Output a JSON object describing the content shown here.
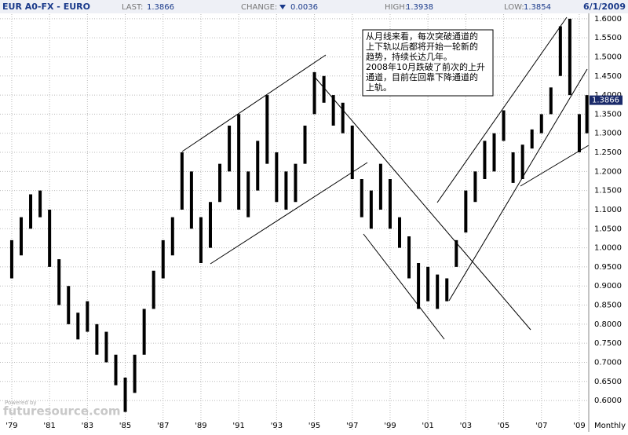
{
  "header": {
    "symbol": "EUR A0-FX - EURO",
    "last_label": "LAST:",
    "last": "1.3866",
    "change_label": "CHANGE:",
    "change": "0.0036",
    "high_label": "HIGH:",
    "high": "1.3938",
    "low_label": "LOW:",
    "low": "1.3854",
    "date": "6/1/2009"
  },
  "annotation": [
    "从月线来看，每次突破通道的",
    "上下轨以后都将开始一轮新的",
    "趋势，持续长达几年。",
    "2008年10月跌破了前次的上升",
    "通道，目前在回靠下降通道的",
    "上轨。"
  ],
  "watermark": {
    "small": "Powered by",
    "brand": "futuresource.com"
  },
  "chart_data": {
    "type": "range-bar",
    "color": "#000000",
    "grid": true,
    "x": [
      1979.0,
      1979.5,
      1980.0,
      1980.5,
      1981.0,
      1981.5,
      1982.0,
      1982.5,
      1983.0,
      1983.5,
      1984.0,
      1984.5,
      1985.0,
      1985.5,
      1986.0,
      1986.5,
      1987.0,
      1987.5,
      1988.0,
      1988.5,
      1989.0,
      1989.5,
      1990.0,
      1990.5,
      1991.0,
      1991.5,
      1992.0,
      1992.5,
      1993.0,
      1993.5,
      1994.0,
      1994.5,
      1995.0,
      1995.5,
      1996.0,
      1996.5,
      1997.0,
      1997.5,
      1998.0,
      1998.5,
      1999.0,
      1999.5,
      2000.0,
      2000.5,
      2001.0,
      2001.5,
      2002.0,
      2002.5,
      2003.0,
      2003.5,
      2004.0,
      2004.5,
      2005.0,
      2005.5,
      2006.0,
      2006.5,
      2007.0,
      2007.5,
      2008.0,
      2008.5,
      2009.0,
      2009.4
    ],
    "high": [
      1.02,
      1.08,
      1.14,
      1.15,
      1.1,
      0.97,
      0.9,
      0.83,
      0.86,
      0.8,
      0.78,
      0.72,
      0.66,
      0.72,
      0.84,
      0.94,
      1.02,
      1.08,
      1.25,
      1.2,
      1.08,
      1.12,
      1.22,
      1.32,
      1.35,
      1.2,
      1.28,
      1.4,
      1.25,
      1.2,
      1.22,
      1.32,
      1.46,
      1.45,
      1.4,
      1.38,
      1.32,
      1.18,
      1.15,
      1.22,
      1.18,
      1.08,
      1.03,
      0.96,
      0.95,
      0.93,
      0.92,
      1.02,
      1.15,
      1.2,
      1.28,
      1.3,
      1.36,
      1.25,
      1.27,
      1.31,
      1.35,
      1.42,
      1.58,
      1.6,
      1.35,
      1.4
    ],
    "low": [
      0.92,
      0.98,
      1.05,
      1.08,
      0.95,
      0.85,
      0.8,
      0.76,
      0.78,
      0.72,
      0.7,
      0.64,
      0.57,
      0.62,
      0.72,
      0.84,
      0.92,
      0.98,
      1.1,
      1.05,
      0.96,
      1.0,
      1.12,
      1.2,
      1.1,
      1.08,
      1.15,
      1.22,
      1.12,
      1.1,
      1.12,
      1.22,
      1.35,
      1.38,
      1.32,
      1.3,
      1.18,
      1.08,
      1.05,
      1.1,
      1.05,
      1.0,
      0.92,
      0.84,
      0.86,
      0.84,
      0.86,
      0.95,
      1.04,
      1.12,
      1.18,
      1.2,
      1.28,
      1.17,
      1.18,
      1.26,
      1.3,
      1.35,
      1.45,
      1.4,
      1.25,
      1.3
    ],
    "xlim": [
      1978.38,
      2009.5
    ],
    "xticks": [
      {
        "value": 1979,
        "label": "'79"
      },
      {
        "value": 1981,
        "label": "'81"
      },
      {
        "value": 1983,
        "label": "'83"
      },
      {
        "value": 1985,
        "label": "'85"
      },
      {
        "value": 1987,
        "label": "'87"
      },
      {
        "value": 1989,
        "label": "'89"
      },
      {
        "value": 1991,
        "label": "'91"
      },
      {
        "value": 1993,
        "label": "'93"
      },
      {
        "value": 1995,
        "label": "'95"
      },
      {
        "value": 1997,
        "label": "'97"
      },
      {
        "value": 1999,
        "label": "'99"
      },
      {
        "value": 2001,
        "label": "'01"
      },
      {
        "value": 2003,
        "label": "'03"
      },
      {
        "value": 2005,
        "label": "'05"
      },
      {
        "value": 2007,
        "label": "'07"
      },
      {
        "value": 2009,
        "label": "'09"
      }
    ],
    "period": "Monthly",
    "ylim": [
      0.522,
      1.612
    ],
    "yticks": [
      {
        "value": 0.6,
        "label": "0.6000"
      },
      {
        "value": 0.65,
        "label": "0.6500"
      },
      {
        "value": 0.7,
        "label": "0.7000"
      },
      {
        "value": 0.75,
        "label": "0.7500"
      },
      {
        "value": 0.8,
        "label": "0.8000"
      },
      {
        "value": 0.85,
        "label": "0.8500"
      },
      {
        "value": 0.9,
        "label": "0.9000"
      },
      {
        "value": 0.95,
        "label": "0.9500"
      },
      {
        "value": 1.0,
        "label": "1.0000"
      },
      {
        "value": 1.05,
        "label": "1.0500"
      },
      {
        "value": 1.1,
        "label": "1.1000"
      },
      {
        "value": 1.15,
        "label": "1.1500"
      },
      {
        "value": 1.2,
        "label": "1.2000"
      },
      {
        "value": 1.25,
        "label": "1.2500"
      },
      {
        "value": 1.3,
        "label": "1.3000"
      },
      {
        "value": 1.35,
        "label": "1.3500"
      },
      {
        "value": 1.4,
        "label": "1.4000"
      },
      {
        "value": 1.45,
        "label": "1.4500"
      },
      {
        "value": 1.5,
        "label": "1.5000"
      },
      {
        "value": 1.55,
        "label": "1.5500"
      },
      {
        "value": 1.6,
        "label": "1.6000"
      }
    ],
    "current": 1.3866
  }
}
